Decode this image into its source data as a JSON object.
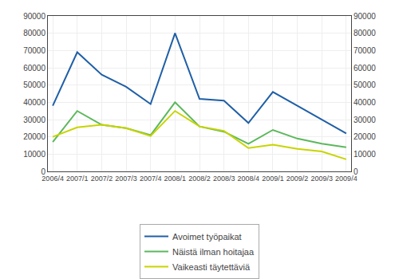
{
  "chart_data": {
    "type": "line",
    "categories": [
      "2006/4",
      "2007/1",
      "2007/2",
      "2007/3",
      "2007/4",
      "2008/1",
      "2008/2",
      "2008/3",
      "2008/4",
      "2009/1",
      "2009/2",
      "2009/3",
      "2009/4"
    ],
    "series": [
      {
        "name": "Avoimet työpaikat",
        "color": "#1f5fa6",
        "values": [
          38000,
          69000,
          56000,
          49000,
          39000,
          80000,
          42000,
          41000,
          28000,
          46000,
          38000,
          30000,
          22000
        ]
      },
      {
        "name": "Näistä ilman hoitajaa",
        "color": "#5cb85c",
        "values": [
          17000,
          35000,
          27000,
          25000,
          21000,
          40000,
          26000,
          23000,
          16000,
          24000,
          19000,
          16000,
          14000
        ]
      },
      {
        "name": "Vaikeasti täytettäviä",
        "color": "#c8d400",
        "values": [
          20000,
          25500,
          27000,
          25000,
          20500,
          35000,
          26000,
          23500,
          13500,
          15500,
          13000,
          11500,
          7000
        ]
      }
    ],
    "ylim": [
      0,
      90000
    ],
    "yticks": [
      0,
      10000,
      20000,
      30000,
      40000,
      50000,
      60000,
      70000,
      80000,
      90000
    ],
    "y2lim": [
      0,
      90000
    ],
    "y2ticks": [
      0,
      10000,
      20000,
      30000,
      40000,
      50000,
      60000,
      70000,
      80000,
      90000
    ],
    "grid": true,
    "legend": "bottom"
  }
}
